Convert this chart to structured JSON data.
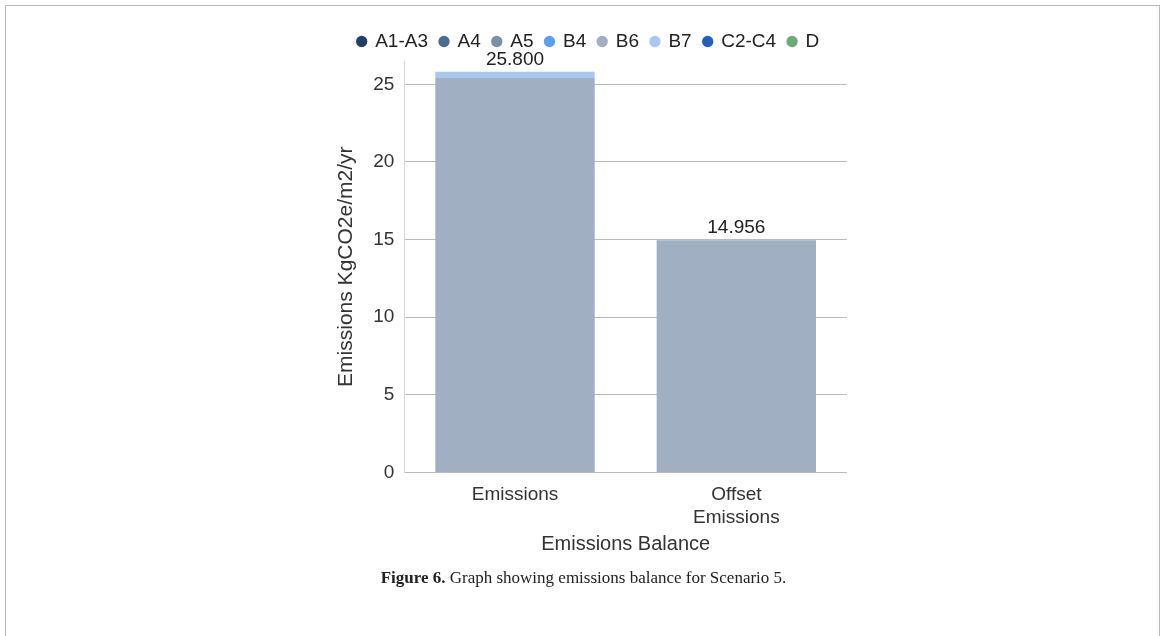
{
  "chart_data": {
    "type": "bar",
    "stacked": true,
    "xlabel": "Emissions Balance",
    "ylabel": "Emissions KgCO2e/m2/yr",
    "categories": [
      "Emissions",
      "Offset Emissions"
    ],
    "series": [
      {
        "name": "A1-A3",
        "color": "#1f3f66",
        "values": [
          0,
          0
        ]
      },
      {
        "name": "A4",
        "color": "#4a6c94",
        "values": [
          0,
          0
        ]
      },
      {
        "name": "A5",
        "color": "#7a8fa8",
        "values": [
          0,
          0
        ]
      },
      {
        "name": "B4",
        "color": "#5aa0f0",
        "values": [
          0,
          0
        ]
      },
      {
        "name": "B6",
        "color": "#a0afc2",
        "values": [
          25.4,
          14.956
        ]
      },
      {
        "name": "B7",
        "color": "#a9c8f0",
        "values": [
          0.4,
          0
        ]
      },
      {
        "name": "C2-C4",
        "color": "#1f5fbf",
        "values": [
          0,
          0
        ]
      },
      {
        "name": "D",
        "color": "#6aab7a",
        "values": [
          0,
          0
        ]
      }
    ],
    "totals": [
      "25.800",
      "14.956"
    ],
    "yticks": [
      0,
      5,
      10,
      15,
      20,
      25
    ],
    "ylim": [
      0,
      26.5
    ],
    "grid": "y",
    "legend": "top",
    "annotations": [
      "Figure 6. Graph showing emissions balance for Scenario 5."
    ]
  }
}
